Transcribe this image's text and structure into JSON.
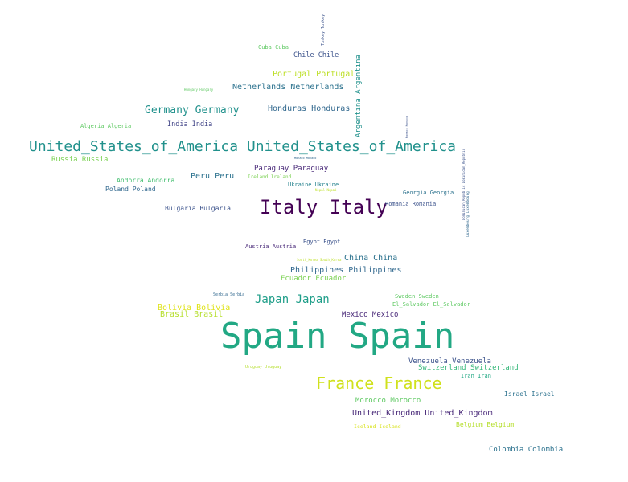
{
  "words": [
    {
      "id": "turkey",
      "text": "Turkey Turkey",
      "color": "#3b528b"
    },
    {
      "id": "cuba",
      "text": "Cuba Cuba",
      "color": "#5ec962"
    },
    {
      "id": "chile",
      "text": "Chile Chile",
      "color": "#3b528b"
    },
    {
      "id": "argentina",
      "text": "Argentina Argentina",
      "color": "#21918c"
    },
    {
      "id": "portugal",
      "text": "Portugal Portugal",
      "color": "#bddf26"
    },
    {
      "id": "hungary",
      "text": "Hungary Hungary",
      "color": "#5ec962"
    },
    {
      "id": "netherlands",
      "text": "Netherlands Netherlands",
      "color": "#2c728e"
    },
    {
      "id": "germany",
      "text": "Germany Germany",
      "color": "#21918c"
    },
    {
      "id": "honduras",
      "text": "Honduras Honduras",
      "color": "#31688e"
    },
    {
      "id": "algeria",
      "text": "Algeria Algeria",
      "color": "#5ec962"
    },
    {
      "id": "india",
      "text": "India India",
      "color": "#414487"
    },
    {
      "id": "monaco",
      "text": "Monaco Monaco",
      "color": "#3b528b"
    },
    {
      "id": "usa",
      "text": "United_States_of_America United_States_of_America",
      "color": "#21918c"
    },
    {
      "id": "russia",
      "text": "Russia Russia",
      "color": "#7ad151"
    },
    {
      "id": "monaco2",
      "text": "Monaco Monaco",
      "color": "#31688e"
    },
    {
      "id": "paraguay",
      "text": "Paraguay Paraguay",
      "color": "#482878"
    },
    {
      "id": "peru",
      "text": "Peru Peru",
      "color": "#2c728e"
    },
    {
      "id": "ireland",
      "text": "Ireland Ireland",
      "color": "#7ad151"
    },
    {
      "id": "andorra",
      "text": "Andorra Andorra",
      "color": "#44bf70"
    },
    {
      "id": "ukraine",
      "text": "Ukraine Ukraine",
      "color": "#26828e"
    },
    {
      "id": "poland",
      "text": "Poland Poland",
      "color": "#31688e"
    },
    {
      "id": "dominican",
      "text": "Dominican_Republic Dominican_Republic",
      "color": "#3b528b"
    },
    {
      "id": "nepal",
      "text": "Nepal Nepal",
      "color": "#bddf26"
    },
    {
      "id": "georgia",
      "text": "Georgia Georgia",
      "color": "#2c728e"
    },
    {
      "id": "luxembourg",
      "text": "Luxembourg Luxembourg",
      "color": "#31688e"
    },
    {
      "id": "italy",
      "text": "Italy Italy",
      "color": "#440154"
    },
    {
      "id": "bulgaria",
      "text": "Bulgaria Bulgaria",
      "color": "#3b528b"
    },
    {
      "id": "romania",
      "text": "Romania Romania",
      "color": "#3b528b"
    },
    {
      "id": "egypt",
      "text": "Egypt Egypt",
      "color": "#3b528b"
    },
    {
      "id": "austria",
      "text": "Austria Austria",
      "color": "#482878"
    },
    {
      "id": "southkorea",
      "text": "South_Korea South_Korea",
      "color": "#bddf26"
    },
    {
      "id": "china",
      "text": "China China",
      "color": "#2c728e"
    },
    {
      "id": "philippines",
      "text": "Philippines Philippines",
      "color": "#31688e"
    },
    {
      "id": "ecuador",
      "text": "Ecuador Ecuador",
      "color": "#7ad151"
    },
    {
      "id": "serbia",
      "text": "Serbia Serbia",
      "color": "#31688e"
    },
    {
      "id": "sweden",
      "text": "Sweden Sweden",
      "color": "#5ec962"
    },
    {
      "id": "japan",
      "text": "Japan Japan",
      "color": "#1f9e89"
    },
    {
      "id": "elsalvador",
      "text": "El_Salvador El_Salvador",
      "color": "#5ec962"
    },
    {
      "id": "bolivia",
      "text": "Bolivia Bolivia",
      "color": "#dfe318"
    },
    {
      "id": "brasil",
      "text": "Brasil Brasil",
      "color": "#b5de2b"
    },
    {
      "id": "mexico",
      "text": "Mexico Mexico",
      "color": "#482878"
    },
    {
      "id": "spain",
      "text": "Spain Spain",
      "color": "#22a884"
    },
    {
      "id": "venezuela",
      "text": "Venezuela Venezuela",
      "color": "#3b528b"
    },
    {
      "id": "switzerland",
      "text": "Switzerland Switzerland",
      "color": "#35b779"
    },
    {
      "id": "uruguay",
      "text": "Uruguay Uruguay",
      "color": "#b5de2b"
    },
    {
      "id": "iran",
      "text": "Iran Iran",
      "color": "#22a884"
    },
    {
      "id": "france",
      "text": "France France",
      "color": "#d0e11c"
    },
    {
      "id": "israel",
      "text": "Israel Israel",
      "color": "#2c728e"
    },
    {
      "id": "morocco",
      "text": "Morocco Morocco",
      "color": "#5ec962"
    },
    {
      "id": "uk",
      "text": "United_Kingdom United_Kingdom",
      "color": "#482878"
    },
    {
      "id": "iceland",
      "text": "Iceland Iceland",
      "color": "#d8e219"
    },
    {
      "id": "belgium",
      "text": "Belgium Belgium",
      "color": "#b5de2b"
    },
    {
      "id": "colombia",
      "text": "Colombia Colombia",
      "color": "#2c728e"
    }
  ]
}
